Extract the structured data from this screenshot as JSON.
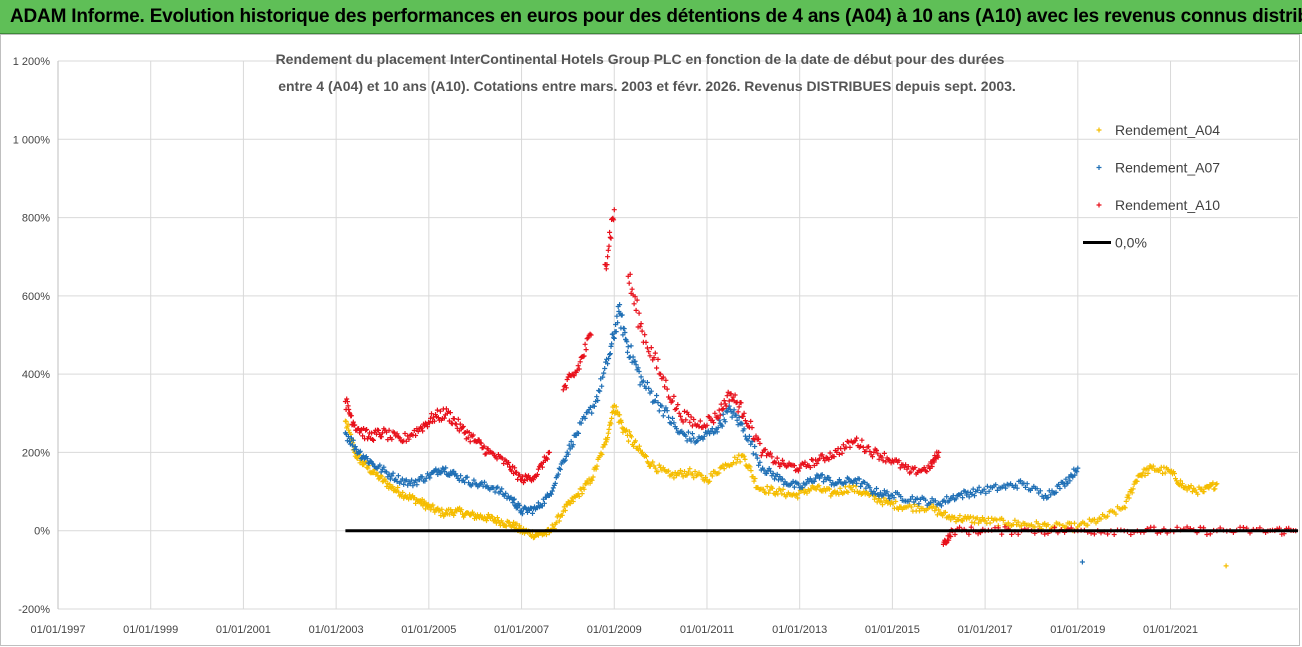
{
  "banner": {
    "title": "ADAM Informe. Evolution historique des performances en euros pour des détentions de 4 ans (A04) à 10 ans (A10) avec les revenus connus distribués"
  },
  "chart_data": {
    "type": "scatter",
    "title_line1": "Rendement du placement InterContinental Hotels Group PLC en fonction de la date de début pour des durées",
    "title_line2": "entre 4 (A04) et 10 ans (A10). Cotations entre mars. 2003 et févr. 2026. Revenus DISTRIBUES depuis sept. 2003.",
    "xlabel": "",
    "ylabel": "",
    "xlim": [
      1997.0,
      2023.75
    ],
    "ylim": [
      -200,
      1200
    ],
    "x_ticks": [
      "01/01/1997",
      "01/01/1999",
      "01/01/2001",
      "01/01/2003",
      "01/01/2005",
      "01/01/2007",
      "01/01/2009",
      "01/01/2011",
      "01/01/2013",
      "01/01/2015",
      "01/01/2017",
      "01/01/2019",
      "01/01/2021"
    ],
    "y_ticks": [
      "-200%",
      "0%",
      "200%",
      "400%",
      "600%",
      "800%",
      "1 000%",
      "1 200%"
    ],
    "y_tick_values": [
      -200,
      0,
      200,
      400,
      600,
      800,
      1000,
      1200
    ],
    "legend_position": "top-right",
    "series": [
      {
        "name": "Rendement_A04",
        "color": "#f5bd00",
        "points": [
          [
            2003.2,
            280
          ],
          [
            2003.4,
            200
          ],
          [
            2003.6,
            170
          ],
          [
            2003.9,
            140
          ],
          [
            2004.2,
            110
          ],
          [
            2004.5,
            90
          ],
          [
            2004.8,
            75
          ],
          [
            2005.0,
            60
          ],
          [
            2005.3,
            45
          ],
          [
            2005.6,
            50
          ],
          [
            2005.9,
            40
          ],
          [
            2006.2,
            35
          ],
          [
            2006.5,
            25
          ],
          [
            2006.8,
            15
          ],
          [
            2007.0,
            0
          ],
          [
            2007.3,
            -10
          ],
          [
            2007.6,
            -5
          ],
          [
            2007.9,
            50
          ],
          [
            2008.2,
            90
          ],
          [
            2008.5,
            130
          ],
          [
            2008.8,
            220
          ],
          [
            2009.0,
            320
          ],
          [
            2009.2,
            260
          ],
          [
            2009.5,
            210
          ],
          [
            2009.8,
            170
          ],
          [
            2010.2,
            140
          ],
          [
            2010.6,
            150
          ],
          [
            2011.0,
            130
          ],
          [
            2011.4,
            170
          ],
          [
            2011.8,
            190
          ],
          [
            2012.1,
            110
          ],
          [
            2012.5,
            100
          ],
          [
            2012.9,
            90
          ],
          [
            2013.3,
            110
          ],
          [
            2013.7,
            95
          ],
          [
            2014.1,
            110
          ],
          [
            2014.5,
            90
          ],
          [
            2014.9,
            70
          ],
          [
            2015.3,
            60
          ],
          [
            2015.8,
            60
          ],
          [
            2016.2,
            35
          ],
          [
            2016.6,
            30
          ],
          [
            2017.0,
            25
          ],
          [
            2017.5,
            20
          ],
          [
            2018.0,
            15
          ],
          [
            2018.5,
            10
          ],
          [
            2019.0,
            10
          ],
          [
            2019.5,
            30
          ],
          [
            2020.0,
            60
          ],
          [
            2020.3,
            140
          ],
          [
            2020.6,
            160
          ],
          [
            2021.0,
            150
          ],
          [
            2021.3,
            110
          ],
          [
            2021.7,
            100
          ],
          [
            2022.0,
            120
          ],
          [
            2022.2,
            -90
          ]
        ]
      },
      {
        "name": "Rendement_A07",
        "color": "#1f6fb5",
        "points": [
          [
            2003.2,
            250
          ],
          [
            2003.5,
            200
          ],
          [
            2003.8,
            170
          ],
          [
            2004.2,
            140
          ],
          [
            2004.6,
            120
          ],
          [
            2005.0,
            140
          ],
          [
            2005.3,
            160
          ],
          [
            2005.6,
            140
          ],
          [
            2006.0,
            120
          ],
          [
            2006.4,
            110
          ],
          [
            2006.8,
            80
          ],
          [
            2007.0,
            50
          ],
          [
            2007.3,
            55
          ],
          [
            2007.6,
            90
          ],
          [
            2007.9,
            180
          ],
          [
            2008.2,
            250
          ],
          [
            2008.6,
            330
          ],
          [
            2008.9,
            450
          ],
          [
            2009.1,
            560
          ],
          [
            2009.3,
            470
          ],
          [
            2009.6,
            380
          ],
          [
            2010.0,
            320
          ],
          [
            2010.4,
            250
          ],
          [
            2010.8,
            230
          ],
          [
            2011.2,
            260
          ],
          [
            2011.5,
            310
          ],
          [
            2011.8,
            260
          ],
          [
            2012.2,
            160
          ],
          [
            2012.6,
            130
          ],
          [
            2013.0,
            110
          ],
          [
            2013.4,
            140
          ],
          [
            2013.8,
            120
          ],
          [
            2014.2,
            130
          ],
          [
            2014.6,
            100
          ],
          [
            2015.0,
            90
          ],
          [
            2015.5,
            80
          ],
          [
            2016.0,
            70
          ],
          [
            2016.4,
            90
          ],
          [
            2016.8,
            100
          ],
          [
            2017.3,
            110
          ],
          [
            2017.8,
            120
          ],
          [
            2018.3,
            90
          ],
          [
            2018.7,
            120
          ],
          [
            2019.0,
            160
          ],
          [
            2019.1,
            -80
          ]
        ]
      },
      {
        "name": "Rendement_A10",
        "color": "#e8101b",
        "points": [
          [
            2003.2,
            330
          ],
          [
            2003.4,
            270
          ],
          [
            2003.7,
            240
          ],
          [
            2004.0,
            250
          ],
          [
            2004.4,
            230
          ],
          [
            2004.8,
            260
          ],
          [
            2005.1,
            290
          ],
          [
            2005.4,
            300
          ],
          [
            2005.7,
            260
          ],
          [
            2006.0,
            230
          ],
          [
            2006.3,
            200
          ],
          [
            2006.7,
            170
          ],
          [
            2007.0,
            130
          ],
          [
            2007.3,
            140
          ],
          [
            2007.6,
            200
          ],
          [
            2007.9,
            360
          ],
          [
            2008.2,
            410
          ],
          [
            2008.5,
            500
          ],
          [
            2008.8,
            680
          ],
          [
            2009.0,
            820
          ],
          [
            2009.3,
            650
          ],
          [
            2009.6,
            510
          ],
          [
            2010.0,
            400
          ],
          [
            2010.4,
            300
          ],
          [
            2010.8,
            270
          ],
          [
            2011.2,
            290
          ],
          [
            2011.5,
            350
          ],
          [
            2011.8,
            300
          ],
          [
            2012.2,
            200
          ],
          [
            2012.6,
            170
          ],
          [
            2013.0,
            160
          ],
          [
            2013.4,
            180
          ],
          [
            2013.8,
            200
          ],
          [
            2014.2,
            230
          ],
          [
            2014.6,
            200
          ],
          [
            2015.0,
            180
          ],
          [
            2015.4,
            150
          ],
          [
            2015.8,
            160
          ],
          [
            2016.0,
            200
          ],
          [
            2016.1,
            -35
          ],
          [
            2016.3,
            0
          ],
          [
            2017.0,
            0
          ],
          [
            2018.0,
            0
          ],
          [
            2019.0,
            0
          ],
          [
            2020.0,
            0
          ],
          [
            2021.0,
            0
          ],
          [
            2022.0,
            0
          ],
          [
            2023.0,
            0
          ],
          [
            2023.7,
            0
          ]
        ]
      },
      {
        "name": "0,0%",
        "color": "#000000",
        "type": "line",
        "points": [
          [
            2003.2,
            0
          ],
          [
            2023.75,
            0
          ]
        ]
      }
    ]
  }
}
